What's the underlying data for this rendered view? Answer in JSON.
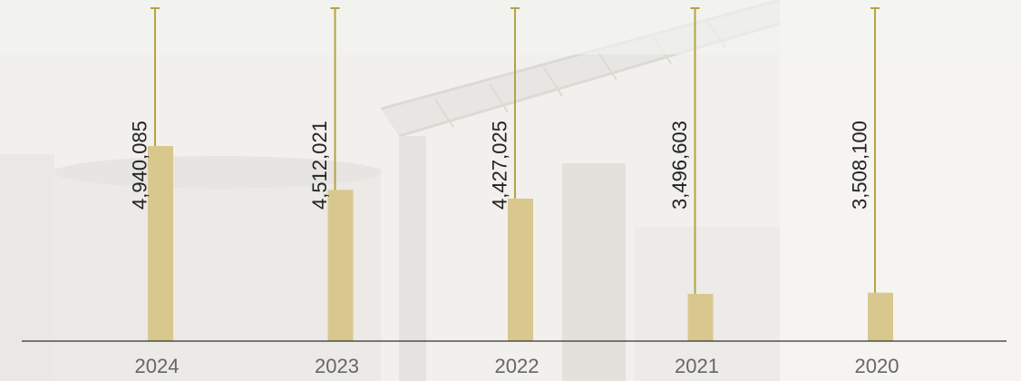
{
  "chart_data": {
    "type": "bar",
    "categories": [
      "2024",
      "2023",
      "2022",
      "2021",
      "2020"
    ],
    "values": [
      4940085,
      4512021,
      4427025,
      3496603,
      3508100
    ],
    "value_labels": [
      "4,940,085",
      "4,512,021",
      "4,427,025",
      "3,496,603",
      "3,508,100"
    ],
    "title": "",
    "xlabel": "",
    "ylabel": "",
    "grid": false,
    "legend": "none"
  },
  "colors": {
    "bar": "#d8c88e",
    "leader_line": "#b5a343",
    "baseline": "#333333",
    "value_text": "#222222",
    "tick_text": "#666666"
  }
}
